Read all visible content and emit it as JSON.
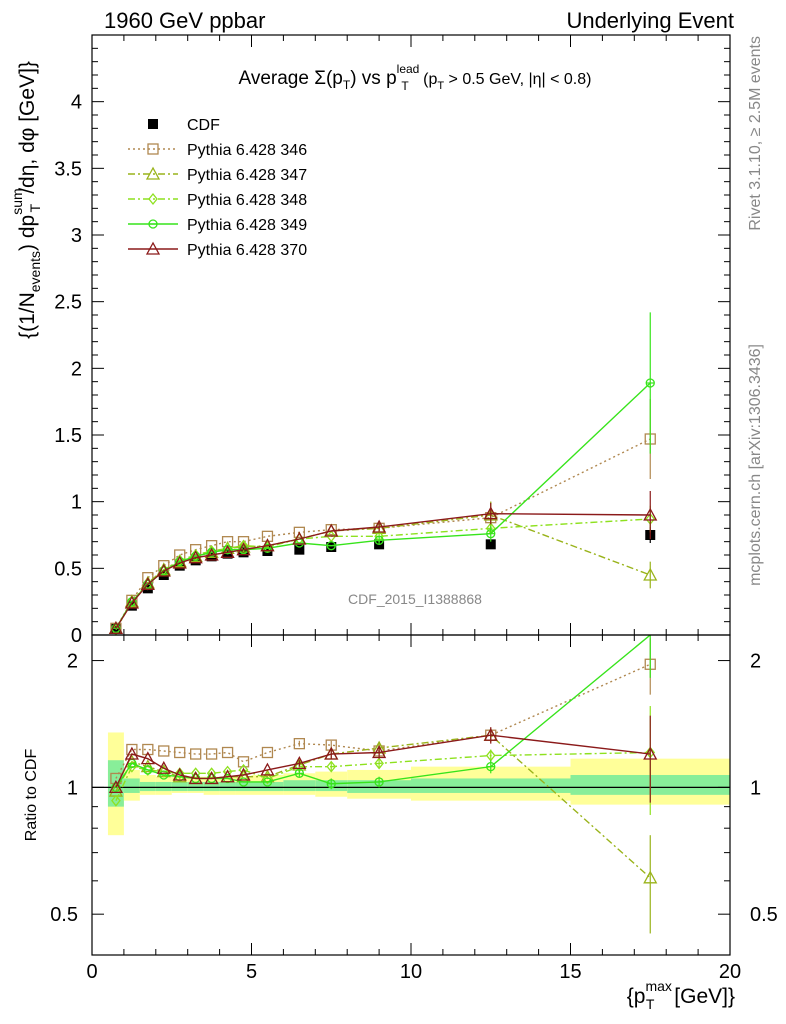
{
  "header": {
    "left": "1960 GeV ppbar",
    "right": "Underlying Event"
  },
  "side_labels": {
    "rivet": "Rivet 3.1.10, ≥ 2.5M events",
    "mcplots": "mcplots.cern.ch [arXiv:1306.3436]"
  },
  "colors": {
    "cdf": "#000000",
    "p346": "#b08850",
    "p347": "#99b31a",
    "p348": "#8ee11f",
    "p349": "#37e41b",
    "p370": "#8b1a1a",
    "band_outer": "#ffff99",
    "band_inner": "#88ee99"
  },
  "chart_data": [
    {
      "type": "line",
      "title": {
        "prefix": "Average ",
        "sigma": "Σ(p",
        "sigma_sub": "T",
        "mid": ") vs p",
        "mid_sup": "lead",
        "mid_sub": "T",
        "cut_open": " (p",
        "cut_sub": "T",
        "cut_rest": " > 0.5 GeV, |η| < 0.8)"
      },
      "watermark": "CDF_2015_I1388868",
      "ylabel": {
        "a": "{(1/N",
        "a_sub": "events",
        "b": ") dp",
        "b_sup": "sum",
        "b_sub": "T",
        "c": "/dη, dφ [GeV]}"
      },
      "xlim": [
        0,
        20
      ],
      "ylim": [
        0,
        4.5
      ],
      "yticks": [
        "0",
        "0.5",
        "1",
        "1.5",
        "2",
        "2.5",
        "3",
        "3.5",
        "4"
      ],
      "ytick_values": [
        0,
        0.5,
        1,
        1.5,
        2,
        2.5,
        3,
        3.5,
        4
      ],
      "legend_position": "top-left",
      "x": [
        0.75,
        1.25,
        1.75,
        2.25,
        2.75,
        3.25,
        3.75,
        4.25,
        4.75,
        5.5,
        6.5,
        7.5,
        9.0,
        12.5,
        17.5
      ],
      "series": [
        {
          "name": "CDF",
          "key": "cdf",
          "marker": "square",
          "dash": "",
          "values": [
            0.05,
            0.22,
            0.35,
            0.45,
            0.52,
            0.56,
            0.59,
            0.61,
            0.62,
            0.63,
            0.64,
            0.66,
            0.68,
            0.68,
            0.75
          ],
          "err": [
            0.01,
            0.01,
            0.01,
            0.01,
            0.01,
            0.01,
            0.01,
            0.01,
            0.01,
            0.02,
            0.02,
            0.02,
            0.02,
            0.03,
            0.06
          ]
        },
        {
          "name": "Pythia 6.428 346",
          "key": "p346",
          "marker": "open-square",
          "dash": "2,3",
          "values": [
            0.05,
            0.26,
            0.43,
            0.52,
            0.6,
            0.64,
            0.67,
            0.7,
            0.7,
            0.74,
            0.77,
            0.79,
            0.8,
            0.88,
            1.47
          ],
          "err": [
            0,
            0,
            0,
            0,
            0,
            0,
            0,
            0,
            0,
            0,
            0,
            0,
            0.03,
            0.12,
            0.3
          ]
        },
        {
          "name": "Pythia 6.428 347",
          "key": "p347",
          "marker": "open-triangle",
          "dash": "7,3,2,3",
          "values": [
            0.05,
            0.25,
            0.39,
            0.49,
            0.55,
            0.59,
            0.62,
            0.65,
            0.66,
            0.67,
            0.72,
            0.78,
            0.8,
            0.9,
            0.45
          ],
          "err": [
            0,
            0,
            0,
            0,
            0,
            0,
            0,
            0,
            0,
            0,
            0,
            0,
            0.04,
            0.1,
            0.1
          ]
        },
        {
          "name": "Pythia 6.428 348",
          "key": "p348",
          "marker": "open-diamond",
          "dash": "7,3,2,3",
          "values": [
            0.04,
            0.25,
            0.38,
            0.49,
            0.56,
            0.6,
            0.63,
            0.65,
            0.67,
            0.66,
            0.72,
            0.74,
            0.74,
            0.8,
            0.87
          ],
          "err": [
            0,
            0,
            0,
            0,
            0,
            0,
            0,
            0,
            0,
            0,
            0,
            0,
            0.03,
            0.04,
            0.1
          ]
        },
        {
          "name": "Pythia 6.428 349",
          "key": "p349",
          "marker": "open-cross",
          "dash": "",
          "values": [
            0.05,
            0.25,
            0.38,
            0.48,
            0.55,
            0.59,
            0.62,
            0.64,
            0.64,
            0.65,
            0.69,
            0.67,
            0.71,
            0.76,
            1.89
          ],
          "err": [
            0,
            0,
            0,
            0,
            0,
            0,
            0,
            0,
            0,
            0,
            0,
            0,
            0.03,
            0.06,
            0.53
          ]
        },
        {
          "name": "Pythia 6.428 370",
          "key": "p370",
          "marker": "open-triangle",
          "dash": "",
          "values": [
            0.05,
            0.24,
            0.38,
            0.48,
            0.54,
            0.58,
            0.6,
            0.62,
            0.64,
            0.67,
            0.72,
            0.78,
            0.81,
            0.91,
            0.9
          ],
          "err": [
            0,
            0,
            0,
            0,
            0,
            0,
            0,
            0,
            0,
            0,
            0,
            0,
            0.03,
            0.08,
            0.18
          ]
        }
      ]
    },
    {
      "type": "line",
      "ylabel": "Ratio to CDF",
      "xlabel": {
        "a": "{p",
        "sup": "max",
        "sub": "T",
        "b": " [GeV]}"
      },
      "xlim": [
        0,
        20
      ],
      "ylim": [
        0.4,
        2.3
      ],
      "log_y": true,
      "xticks": [
        "0",
        "5",
        "10",
        "15",
        "20"
      ],
      "xtick_values": [
        0,
        5,
        10,
        15,
        20
      ],
      "yticks": [
        "0.5",
        "1",
        "2"
      ],
      "ytick_values": [
        0.5,
        1,
        2
      ],
      "reference_line": 1,
      "bands": {
        "edges": [
          0.5,
          1.0,
          1.5,
          2.0,
          2.5,
          3.0,
          3.5,
          4.0,
          4.5,
          5.0,
          6.0,
          7.0,
          8.0,
          10.0,
          15.0,
          20.0
        ],
        "outer_lo": [
          0.77,
          0.93,
          0.96,
          0.96,
          0.97,
          0.97,
          0.96,
          0.96,
          0.96,
          0.96,
          0.96,
          0.95,
          0.94,
          0.93,
          0.91
        ],
        "outer_hi": [
          1.35,
          1.1,
          1.07,
          1.06,
          1.06,
          1.06,
          1.06,
          1.06,
          1.06,
          1.07,
          1.08,
          1.09,
          1.1,
          1.12,
          1.17
        ],
        "inner_lo": [
          0.9,
          0.97,
          0.98,
          0.98,
          0.98,
          0.98,
          0.98,
          0.98,
          0.98,
          0.98,
          0.98,
          0.98,
          0.97,
          0.97,
          0.96
        ],
        "inner_hi": [
          1.16,
          1.05,
          1.03,
          1.03,
          1.03,
          1.03,
          1.03,
          1.03,
          1.03,
          1.03,
          1.04,
          1.04,
          1.04,
          1.05,
          1.07
        ]
      },
      "series": [
        {
          "key": "cdf",
          "marker": "none",
          "dash": "",
          "values": [],
          "err": []
        },
        {
          "key": "p346",
          "marker": "open-square",
          "dash": "2,3",
          "values": [
            1.05,
            1.23,
            1.23,
            1.22,
            1.21,
            1.2,
            1.2,
            1.21,
            1.15,
            1.21,
            1.27,
            1.26,
            1.22,
            1.33,
            1.96
          ],
          "err": [
            0,
            0,
            0,
            0,
            0,
            0,
            0,
            0,
            0,
            0,
            0.02,
            0.03,
            0.04,
            0.05,
            0.3
          ]
        },
        {
          "key": "p347",
          "marker": "open-triangle",
          "dash": "7,3,2,3",
          "values": [
            0.98,
            1.15,
            1.12,
            1.09,
            1.06,
            1.05,
            1.05,
            1.06,
            1.06,
            1.06,
            1.13,
            1.2,
            1.24,
            1.33,
            0.61
          ],
          "err": [
            0,
            0,
            0,
            0,
            0,
            0,
            0,
            0,
            0,
            0,
            0.02,
            0.03,
            0.04,
            0.05,
            0.16
          ]
        },
        {
          "key": "p348",
          "marker": "open-diamond",
          "dash": "7,3,2,3",
          "values": [
            0.93,
            1.12,
            1.1,
            1.09,
            1.08,
            1.08,
            1.08,
            1.09,
            1.1,
            1.05,
            1.12,
            1.12,
            1.14,
            1.19,
            1.21
          ],
          "err": [
            0,
            0,
            0,
            0,
            0,
            0,
            0,
            0,
            0,
            0,
            0.02,
            0.03,
            0.03,
            0.04,
            0.35
          ]
        },
        {
          "key": "p349",
          "marker": "open-cross",
          "dash": "",
          "values": [
            1.0,
            1.14,
            1.1,
            1.07,
            1.06,
            1.05,
            1.05,
            1.05,
            1.03,
            1.03,
            1.08,
            1.02,
            1.03,
            1.12,
            2.52
          ],
          "err": [
            0,
            0,
            0,
            0,
            0,
            0,
            0,
            0,
            0,
            0,
            0.02,
            0.03,
            0.03,
            0.04,
            0.7
          ]
        },
        {
          "key": "p370",
          "marker": "open-triangle",
          "dash": "",
          "values": [
            1.0,
            1.2,
            1.17,
            1.11,
            1.07,
            1.05,
            1.05,
            1.06,
            1.07,
            1.1,
            1.14,
            1.2,
            1.21,
            1.33,
            1.2
          ],
          "err": [
            0,
            0,
            0,
            0,
            0,
            0,
            0,
            0,
            0,
            0,
            0.02,
            0.03,
            0.04,
            0.06,
            0.28
          ]
        }
      ]
    }
  ]
}
